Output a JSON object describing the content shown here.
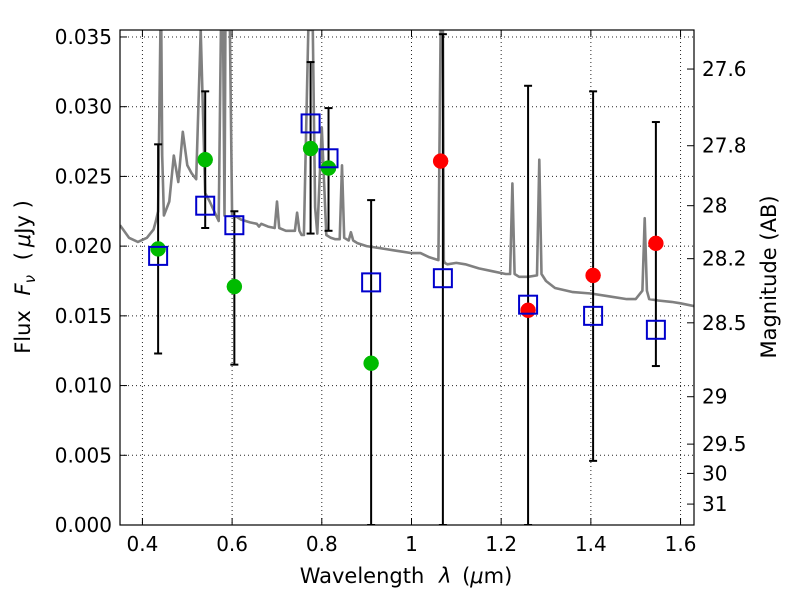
{
  "chart_data": {
    "type": "scatter",
    "xlabel": "Wavelength",
    "xlabel_symbol": "λ",
    "xlabel_unit_open": "(",
    "xlabel_unit_mu": "μ",
    "xlabel_unit_rest": "m)",
    "ylabel": "Flux",
    "ylabel_symbol": "F",
    "ylabel_subscript": "ν",
    "ylabel_unit_open": "(",
    "ylabel_unit_mu": "μ",
    "ylabel_unit_rest": "Jy )",
    "y2label": "Magnitude (AB)",
    "xlim": [
      0.35,
      1.63
    ],
    "ylim": [
      0.0,
      0.0355
    ],
    "grid": true,
    "xticks": [
      {
        "value": 0.4,
        "label": "0.4"
      },
      {
        "value": 0.6,
        "label": "0.6"
      },
      {
        "value": 0.8,
        "label": "0.8"
      },
      {
        "value": 1.0,
        "label": "1"
      },
      {
        "value": 1.2,
        "label": "1.2"
      },
      {
        "value": 1.4,
        "label": "1.4"
      },
      {
        "value": 1.6,
        "label": "1.6"
      }
    ],
    "yticks": [
      {
        "value": 0.0,
        "label": "0.000"
      },
      {
        "value": 0.005,
        "label": "0.005"
      },
      {
        "value": 0.01,
        "label": "0.010"
      },
      {
        "value": 0.015,
        "label": "0.015"
      },
      {
        "value": 0.02,
        "label": "0.020"
      },
      {
        "value": 0.025,
        "label": "0.025"
      },
      {
        "value": 0.03,
        "label": "0.030"
      },
      {
        "value": 0.035,
        "label": "0.035"
      }
    ],
    "y2ticks": [
      {
        "flux": 0.0327,
        "label": "27.6"
      },
      {
        "flux": 0.0272,
        "label": "27.8"
      },
      {
        "flux": 0.0229,
        "label": "28"
      },
      {
        "flux": 0.0191,
        "label": "28.2"
      },
      {
        "flux": 0.0145,
        "label": "28.5"
      },
      {
        "flux": 0.0092,
        "label": "29"
      },
      {
        "flux": 0.0058,
        "label": "29.5"
      },
      {
        "flux": 0.0037,
        "label": "30"
      },
      {
        "flux": 0.0015,
        "label": "31"
      }
    ],
    "series": [
      {
        "name": "model_spectrum",
        "kind": "line",
        "color": "#808080",
        "x": [
          0.35,
          0.37,
          0.39,
          0.41,
          0.425,
          0.43,
          0.435,
          0.44,
          0.442,
          0.444,
          0.448,
          0.46,
          0.47,
          0.48,
          0.49,
          0.5,
          0.51,
          0.52,
          0.53,
          0.54,
          0.55,
          0.56,
          0.57,
          0.575,
          0.58,
          0.583,
          0.585,
          0.588,
          0.59,
          0.595,
          0.6,
          0.61,
          0.62,
          0.63,
          0.64,
          0.655,
          0.66,
          0.665,
          0.68,
          0.695,
          0.7,
          0.705,
          0.72,
          0.74,
          0.745,
          0.75,
          0.755,
          0.76,
          0.77,
          0.775,
          0.78,
          0.785,
          0.79,
          0.8,
          0.81,
          0.82,
          0.83,
          0.84,
          0.845,
          0.85,
          0.855,
          0.86,
          0.865,
          0.87,
          0.875,
          0.88,
          0.9,
          0.92,
          0.94,
          0.96,
          0.98,
          1.0,
          1.02,
          1.04,
          1.06,
          1.065,
          1.07,
          1.072,
          1.074,
          1.08,
          1.1,
          1.12,
          1.15,
          1.18,
          1.21,
          1.22,
          1.225,
          1.23,
          1.24,
          1.26,
          1.28,
          1.285,
          1.29,
          1.3,
          1.32,
          1.36,
          1.4,
          1.44,
          1.48,
          1.5,
          1.515,
          1.52,
          1.525,
          1.53,
          1.55,
          1.58,
          1.6,
          1.63
        ],
        "y": [
          0.0215,
          0.0206,
          0.0203,
          0.0206,
          0.0212,
          0.0218,
          0.0225,
          0.0355,
          0.0355,
          0.0265,
          0.0222,
          0.0232,
          0.0265,
          0.0246,
          0.0282,
          0.0258,
          0.0252,
          0.0248,
          0.0355,
          0.0238,
          0.0232,
          0.0225,
          0.0218,
          0.0355,
          0.0355,
          0.0222,
          0.0355,
          0.0355,
          0.0355,
          0.0355,
          0.0222,
          0.0221,
          0.0219,
          0.0218,
          0.0217,
          0.0216,
          0.0214,
          0.0216,
          0.0214,
          0.0213,
          0.0232,
          0.0213,
          0.0211,
          0.0211,
          0.0224,
          0.0211,
          0.0208,
          0.0208,
          0.0355,
          0.0355,
          0.0355,
          0.0228,
          0.0209,
          0.0285,
          0.0208,
          0.0206,
          0.0205,
          0.0205,
          0.0258,
          0.0206,
          0.0205,
          0.0204,
          0.021,
          0.0204,
          0.0203,
          0.0202,
          0.02,
          0.0199,
          0.0198,
          0.0197,
          0.0196,
          0.0195,
          0.0195,
          0.0192,
          0.019,
          0.0355,
          0.0355,
          0.019,
          0.0188,
          0.0187,
          0.0188,
          0.0187,
          0.0184,
          0.0182,
          0.018,
          0.018,
          0.0245,
          0.018,
          0.0178,
          0.0178,
          0.0179,
          0.0262,
          0.018,
          0.0175,
          0.017,
          0.0167,
          0.0166,
          0.0164,
          0.0162,
          0.0162,
          0.0168,
          0.022,
          0.0168,
          0.0162,
          0.0161,
          0.016,
          0.0159,
          0.0157
        ]
      },
      {
        "name": "green_points",
        "kind": "points",
        "marker": "filled-circle",
        "color": "#00bb00",
        "x": [
          0.435,
          0.54,
          0.605,
          0.775,
          0.815,
          0.91
        ],
        "y": [
          0.0198,
          0.0262,
          0.0171,
          0.027,
          0.0256,
          0.0116
        ]
      },
      {
        "name": "red_points",
        "kind": "points",
        "marker": "filled-circle",
        "color": "#ff0000",
        "x": [
          1.065,
          1.26,
          1.405,
          1.545
        ],
        "y": [
          0.0261,
          0.0154,
          0.0179,
          0.0202
        ]
      },
      {
        "name": "blue_squares",
        "kind": "points",
        "marker": "open-square",
        "color": "#0000cc",
        "x": [
          0.435,
          0.54,
          0.605,
          0.775,
          0.815,
          0.91,
          1.07,
          1.26,
          1.405,
          1.545
        ],
        "y": [
          0.0193,
          0.0229,
          0.0215,
          0.0288,
          0.0263,
          0.0174,
          0.0177,
          0.0158,
          0.015,
          0.014
        ],
        "yerr_low": [
          0.0123,
          0.0213,
          0.0115,
          0.0209,
          0.0211,
          0.0,
          0.0,
          0.0,
          0.0046,
          0.0114
        ],
        "yerr_high": [
          0.0273,
          0.0311,
          0.0225,
          0.0332,
          0.0299,
          0.0233,
          0.0352,
          0.0315,
          0.0311,
          0.0289
        ]
      }
    ]
  }
}
